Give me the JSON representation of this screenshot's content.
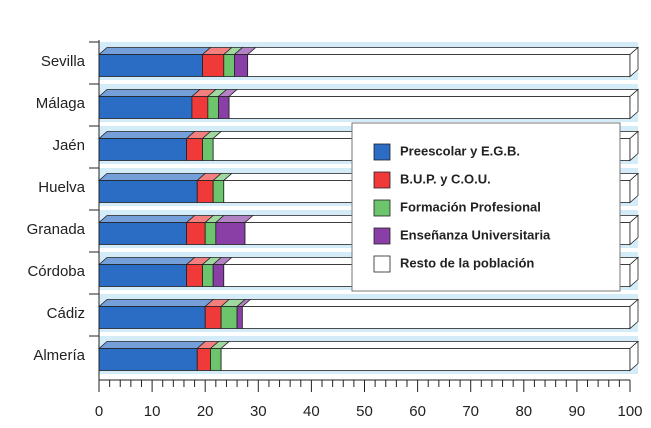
{
  "chart_data": {
    "type": "stacked-bar-horizontal",
    "categories": [
      "Sevilla",
      "Málaga",
      "Jaén",
      "Huelva",
      "Granada",
      "Córdoba",
      "Cádiz",
      "Almería"
    ],
    "series": [
      {
        "name": "Preescolar y E.G.B.",
        "color": "#2b6cc4",
        "values": [
          19.5,
          17.5,
          16.5,
          18.5,
          16.5,
          16.5,
          20,
          18.5
        ]
      },
      {
        "name": "B.U.P. y C.O.U.",
        "color": "#f03a3a",
        "values": [
          4,
          3,
          3,
          3,
          3.5,
          3,
          3,
          2.5
        ]
      },
      {
        "name": "Formación Profesional",
        "color": "#6cc46c",
        "values": [
          2,
          2,
          2,
          2,
          2,
          2,
          3,
          2
        ]
      },
      {
        "name": "Enseñanza Universitaria",
        "color": "#8a3fa6",
        "values": [
          2.5,
          2,
          0,
          0,
          5.5,
          2,
          1,
          0
        ]
      },
      {
        "name": "Resto de la población",
        "color": "#ffffff",
        "values": [
          72,
          75.5,
          78.5,
          76.5,
          72.5,
          76.5,
          73,
          77
        ]
      }
    ],
    "xlim": [
      0,
      100
    ],
    "xticks": [
      0,
      10,
      20,
      30,
      40,
      50,
      60,
      70,
      80,
      90,
      100
    ],
    "xminorticks": [
      2,
      4,
      6,
      8,
      12,
      14,
      16,
      18,
      22,
      24,
      26,
      28,
      32,
      34,
      36,
      38,
      42,
      44,
      46,
      48,
      52,
      54,
      56,
      58,
      62,
      64,
      66,
      68,
      72,
      74,
      76,
      78,
      82,
      84,
      86,
      88,
      92,
      94,
      96,
      98
    ]
  }
}
